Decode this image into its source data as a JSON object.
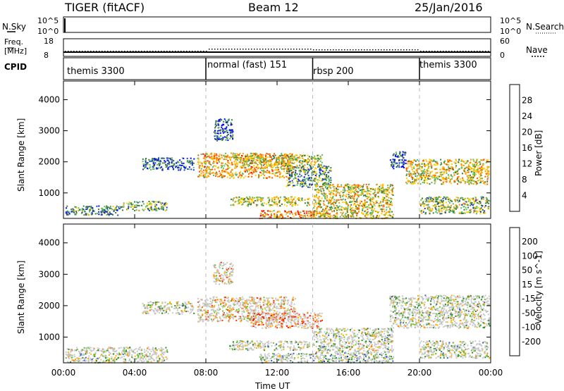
{
  "header": {
    "radar": "TIGER (fitACF)",
    "beam": "Beam 12",
    "date": "25/Jan/2016"
  },
  "noise_panel": {
    "left_label": "N.Sky",
    "right_label": "N.Search",
    "ticks": [
      "10^5",
      "10^0"
    ]
  },
  "freq_panel": {
    "left_label_1": "Freq.",
    "left_label_2": "[MHz]",
    "right_label": "Nave",
    "left_ticks": [
      "18",
      "8"
    ],
    "right_ticks": [
      "60",
      "0"
    ]
  },
  "cpid_panel": {
    "label": "CPID",
    "modes": [
      {
        "name": "themis 3300",
        "start": 0
      },
      {
        "name": "normal (fast) 151",
        "start": 8
      },
      {
        "name": "rbsp 200",
        "start": 14
      },
      {
        "name": "themis 3300",
        "start": 20
      }
    ]
  },
  "chart_data": [
    {
      "type": "heatmap",
      "title": "",
      "xlabel": "Time UT",
      "ylabel": "Slant Range [km]",
      "xlim": [
        0,
        24
      ],
      "ylim": [
        180,
        4600
      ],
      "x_ticks": [
        "00:00",
        "04:00",
        "08:00",
        "12:00",
        "16:00",
        "20:00",
        "00:00"
      ],
      "y_ticks": [
        1000,
        2000,
        3000,
        4000
      ],
      "colorbar": {
        "label": "Power [dB]",
        "ticks": [
          "28",
          "24",
          "20",
          "16",
          "12",
          "8",
          "4"
        ],
        "colors": [
          "#0000ff",
          "#1f3fb0",
          "#3a7a3a",
          "#5fba5f",
          "#ffd000",
          "#ff9900",
          "#ff5500",
          "#ff0000"
        ]
      },
      "regions": [
        {
          "t0": 0.1,
          "t1": 3.3,
          "r0": 300,
          "r1": 600,
          "level": 0.3
        },
        {
          "t0": 3.3,
          "t1": 5.8,
          "r0": 450,
          "r1": 750,
          "level": 0.4
        },
        {
          "t0": 4.4,
          "t1": 7.3,
          "r0": 1750,
          "r1": 2150,
          "level": 0.25
        },
        {
          "t0": 7.5,
          "t1": 13.0,
          "r0": 1500,
          "r1": 2300,
          "level": 0.65
        },
        {
          "t0": 9.5,
          "t1": 14.5,
          "r0": 1900,
          "r1": 2250,
          "level": 0.5
        },
        {
          "t0": 9.3,
          "t1": 13.8,
          "r0": 600,
          "r1": 900,
          "level": 0.5
        },
        {
          "t0": 11.0,
          "t1": 15.0,
          "r0": 200,
          "r1": 450,
          "level": 0.7
        },
        {
          "t0": 12.5,
          "t1": 15.0,
          "r0": 1200,
          "r1": 1900,
          "level": 0.35
        },
        {
          "t0": 14.0,
          "t1": 18.5,
          "r0": 200,
          "r1": 1300,
          "level": 0.55
        },
        {
          "t0": 18.3,
          "t1": 19.2,
          "r0": 1800,
          "r1": 2350,
          "level": 0.2
        },
        {
          "t0": 19.2,
          "t1": 23.9,
          "r0": 1300,
          "r1": 2100,
          "level": 0.55
        },
        {
          "t0": 20.0,
          "t1": 23.9,
          "r0": 350,
          "r1": 900,
          "level": 0.45
        },
        {
          "t0": 8.4,
          "t1": 9.5,
          "r0": 2700,
          "r1": 3400,
          "level": 0.25
        }
      ]
    },
    {
      "type": "heatmap",
      "title": "",
      "xlabel": "Time UT",
      "ylabel": "Slant Range [km]",
      "xlim": [
        0,
        24
      ],
      "ylim": [
        180,
        4600
      ],
      "x_ticks": [
        "00:00",
        "04:00",
        "08:00",
        "12:00",
        "16:00",
        "20:00",
        "00:00"
      ],
      "y_ticks": [
        1000,
        2000,
        3000,
        4000
      ],
      "colorbar": {
        "label": "Velocity [m s^-1]",
        "ticks": [
          "200",
          "100",
          "50",
          "15",
          "-15",
          "-50",
          "-100",
          "-200"
        ],
        "colors": [
          "#2020d0",
          "#3a5fc0",
          "#2a8a2a",
          "#6cc02a",
          "#c8c8c8",
          "#ffb000",
          "#ff7800",
          "#ff3000",
          "#ff0000"
        ]
      },
      "regions": [
        {
          "t0": 0.1,
          "t1": 5.8,
          "r0": 200,
          "r1": 700,
          "level": 0.45
        },
        {
          "t0": 4.4,
          "t1": 7.3,
          "r0": 1750,
          "r1": 2150,
          "level": 0.45
        },
        {
          "t0": 7.5,
          "t1": 13.0,
          "r0": 1500,
          "r1": 2300,
          "level": 0.6
        },
        {
          "t0": 10.5,
          "t1": 14.5,
          "r0": 1300,
          "r1": 1800,
          "level": 0.75
        },
        {
          "t0": 9.3,
          "t1": 13.8,
          "r0": 600,
          "r1": 900,
          "level": 0.45
        },
        {
          "t0": 11.0,
          "t1": 18.5,
          "r0": 200,
          "r1": 500,
          "level": 0.35
        },
        {
          "t0": 14.0,
          "t1": 18.5,
          "r0": 500,
          "r1": 1300,
          "level": 0.45
        },
        {
          "t0": 18.3,
          "t1": 23.9,
          "r0": 1300,
          "r1": 2350,
          "level": 0.45
        },
        {
          "t0": 20.0,
          "t1": 23.9,
          "r0": 350,
          "r1": 900,
          "level": 0.45
        },
        {
          "t0": 8.4,
          "t1": 9.5,
          "r0": 2700,
          "r1": 3400,
          "level": 0.6
        }
      ]
    }
  ]
}
